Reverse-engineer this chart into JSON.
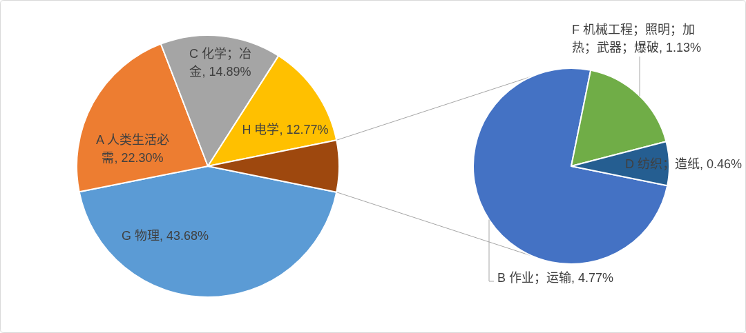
{
  "chart_data": [
    {
      "type": "pie",
      "categories": [
        "G 物理",
        "A 人类生活必需",
        "C 化学；冶金",
        "H 电学",
        null
      ],
      "values": [
        43.68,
        22.3,
        14.89,
        12.77,
        6.36
      ],
      "colors": [
        "#5b9bd5",
        "#ed7d31",
        "#a5a5a5",
        "#ffc000",
        "#9e480e"
      ],
      "value_labels": [
        "43.68%",
        "22.30%",
        "14.89%",
        "12.77%",
        null
      ]
    },
    {
      "type": "pie",
      "categories": [
        "B 作业；运输",
        "F 机械工程；照明；加热；武器；爆破",
        "D 纺织；造纸"
      ],
      "values": [
        4.77,
        1.13,
        0.46
      ],
      "colors": [
        "#4472c4",
        "#70ad47",
        "#255e91"
      ],
      "value_labels": [
        "4.77%",
        "1.13%",
        "0.46%"
      ]
    }
  ]
}
